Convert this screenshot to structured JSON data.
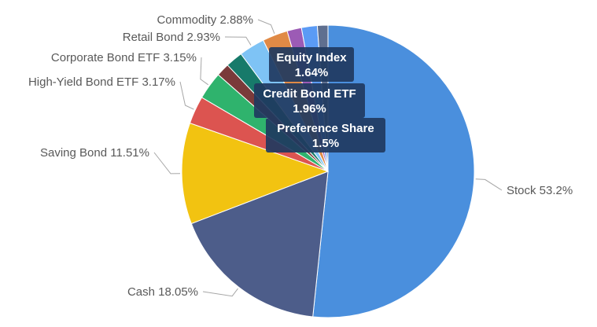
{
  "chart_data": {
    "type": "pie",
    "title": "",
    "legend": "none",
    "slices": [
      {
        "name": "Stock",
        "value": 53.2,
        "label": "Stock 53.2%",
        "color": "#4a8fdd"
      },
      {
        "name": "Cash",
        "value": 18.05,
        "label": "Cash 18.05%",
        "color": "#4d5d8a"
      },
      {
        "name": "Saving Bond",
        "value": 11.51,
        "label": "Saving Bond 11.51%",
        "color": "#f2c311"
      },
      {
        "name": "High-Yield Bond ETF",
        "value": 3.17,
        "label": "High-Yield Bond ETF 3.17%",
        "color": "#dc5450"
      },
      {
        "name": "Corporate Bond ETF",
        "value": 3.15,
        "label": "Corporate Bond ETF 3.15%",
        "color": "#2fb36d"
      },
      {
        "name": "Preference Share",
        "value": 1.5,
        "label_lines": [
          "Preference Share",
          "1.5%"
        ],
        "color": "#7a3a3a"
      },
      {
        "name": "Credit Bond ETF",
        "value": 1.96,
        "label_lines": [
          "Credit Bond ETF",
          "1.96%"
        ],
        "color": "#177a6a"
      },
      {
        "name": "Retail Bond",
        "value": 2.93,
        "label": "Retail Bond 2.93%",
        "color": "#7ec3f5"
      },
      {
        "name": "Commodity",
        "value": 2.88,
        "label": "Commodity 2.88%",
        "color": "#e08a46"
      },
      {
        "name": "Equity Index",
        "value": 1.64,
        "label_lines": [
          "Equity Index",
          "1.64%"
        ],
        "color": "#9c5bb5"
      },
      {
        "name": "Unlabeled slice A",
        "value": 1.8,
        "color": "#5b9bf5"
      },
      {
        "name": "Unlabeled slice B",
        "value": 1.2,
        "color": "#5f6f8f"
      }
    ]
  }
}
